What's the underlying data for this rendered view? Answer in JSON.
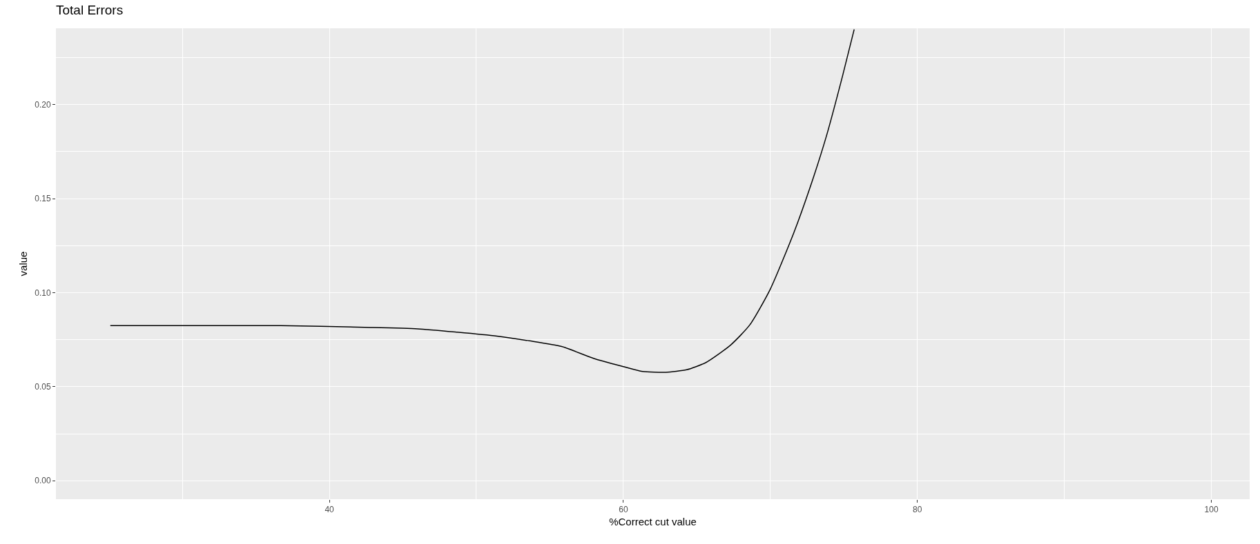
{
  "chart_data": {
    "type": "line",
    "title": "Total Errors",
    "xlabel": "%Correct cut value",
    "ylabel": "value",
    "x": [
      25.1,
      36.7,
      42.4,
      46.0,
      48.7,
      51.4,
      53.6,
      55.8,
      58.0,
      60.0,
      61.3,
      62.9,
      64.3,
      65.6,
      67.3,
      68.6,
      70.0,
      71.6,
      72.7,
      73.8,
      74.9,
      75.7
    ],
    "series": [
      {
        "color": "#000000",
        "values": [
          0.0825,
          0.0825,
          0.0816,
          0.0808,
          0.079,
          0.0769,
          0.0744,
          0.0714,
          0.065,
          0.0607,
          0.0581,
          0.0577,
          0.059,
          0.0628,
          0.0722,
          0.0829,
          0.102,
          0.132,
          0.156,
          0.183,
          0.215,
          0.24
        ]
      }
    ],
    "xlim": [
      21.4,
      102.6
    ],
    "ylim": [
      -0.0098,
      0.2406
    ],
    "xticks": [
      40,
      60,
      80,
      100
    ],
    "yticks": [
      {
        "value": 0,
        "label": "0.00"
      },
      {
        "value": 0.05,
        "label": "0.05"
      },
      {
        "value": 0.1,
        "label": "0.10"
      },
      {
        "value": 0.15,
        "label": "0.15"
      },
      {
        "value": 0.2,
        "label": "0.20"
      }
    ],
    "grid": true,
    "marker": "none",
    "line_style": "solid"
  }
}
